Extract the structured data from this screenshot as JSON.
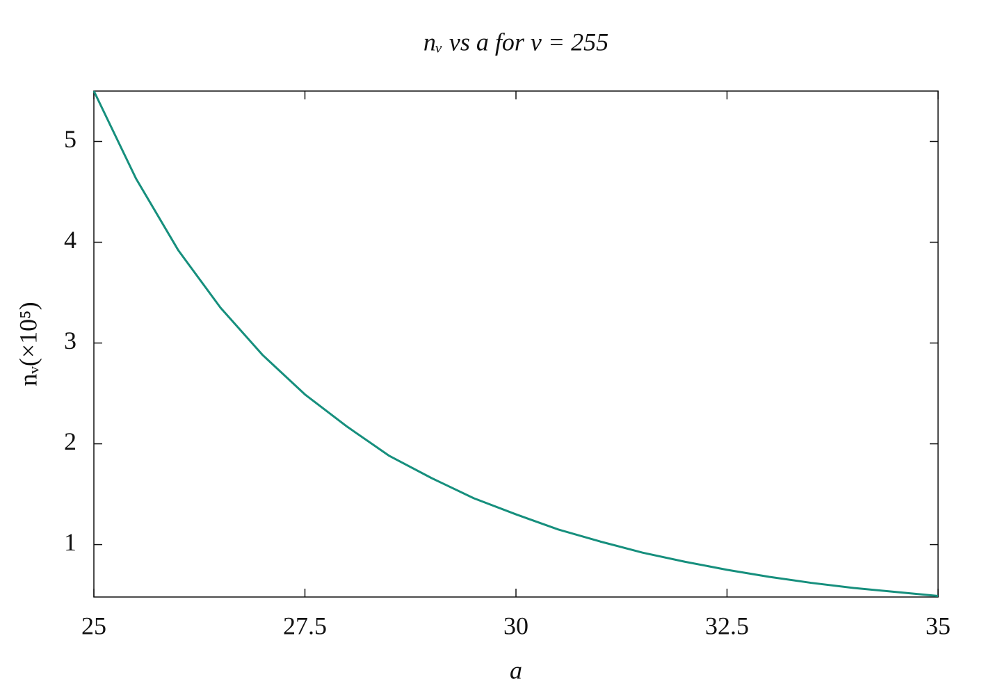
{
  "chart_data": {
    "type": "line",
    "title": "nᵥ vs a for v = 255",
    "xlabel": "a",
    "ylabel": "nᵥ(×10⁵)",
    "x": [
      25,
      25.5,
      26,
      26.5,
      27,
      27.5,
      28,
      28.5,
      29,
      29.5,
      30,
      30.5,
      31,
      31.5,
      32,
      32.5,
      33,
      33.5,
      34,
      34.5,
      35
    ],
    "series": [
      {
        "name": "nᵥ",
        "color": "#168f7d",
        "values": [
          5.5,
          4.63,
          3.92,
          3.35,
          2.88,
          2.49,
          2.17,
          1.88,
          1.66,
          1.46,
          1.3,
          1.15,
          1.03,
          0.92,
          0.83,
          0.75,
          0.68,
          0.62,
          0.57,
          0.53,
          0.49
        ]
      }
    ],
    "xlim": [
      25,
      35
    ],
    "xticks": [
      25,
      27.5,
      30,
      32.5,
      35
    ],
    "ylim": [
      0.48,
      5.5
    ],
    "yticks": [
      1,
      2,
      3,
      4,
      5
    ],
    "legend": false,
    "grid": false
  }
}
